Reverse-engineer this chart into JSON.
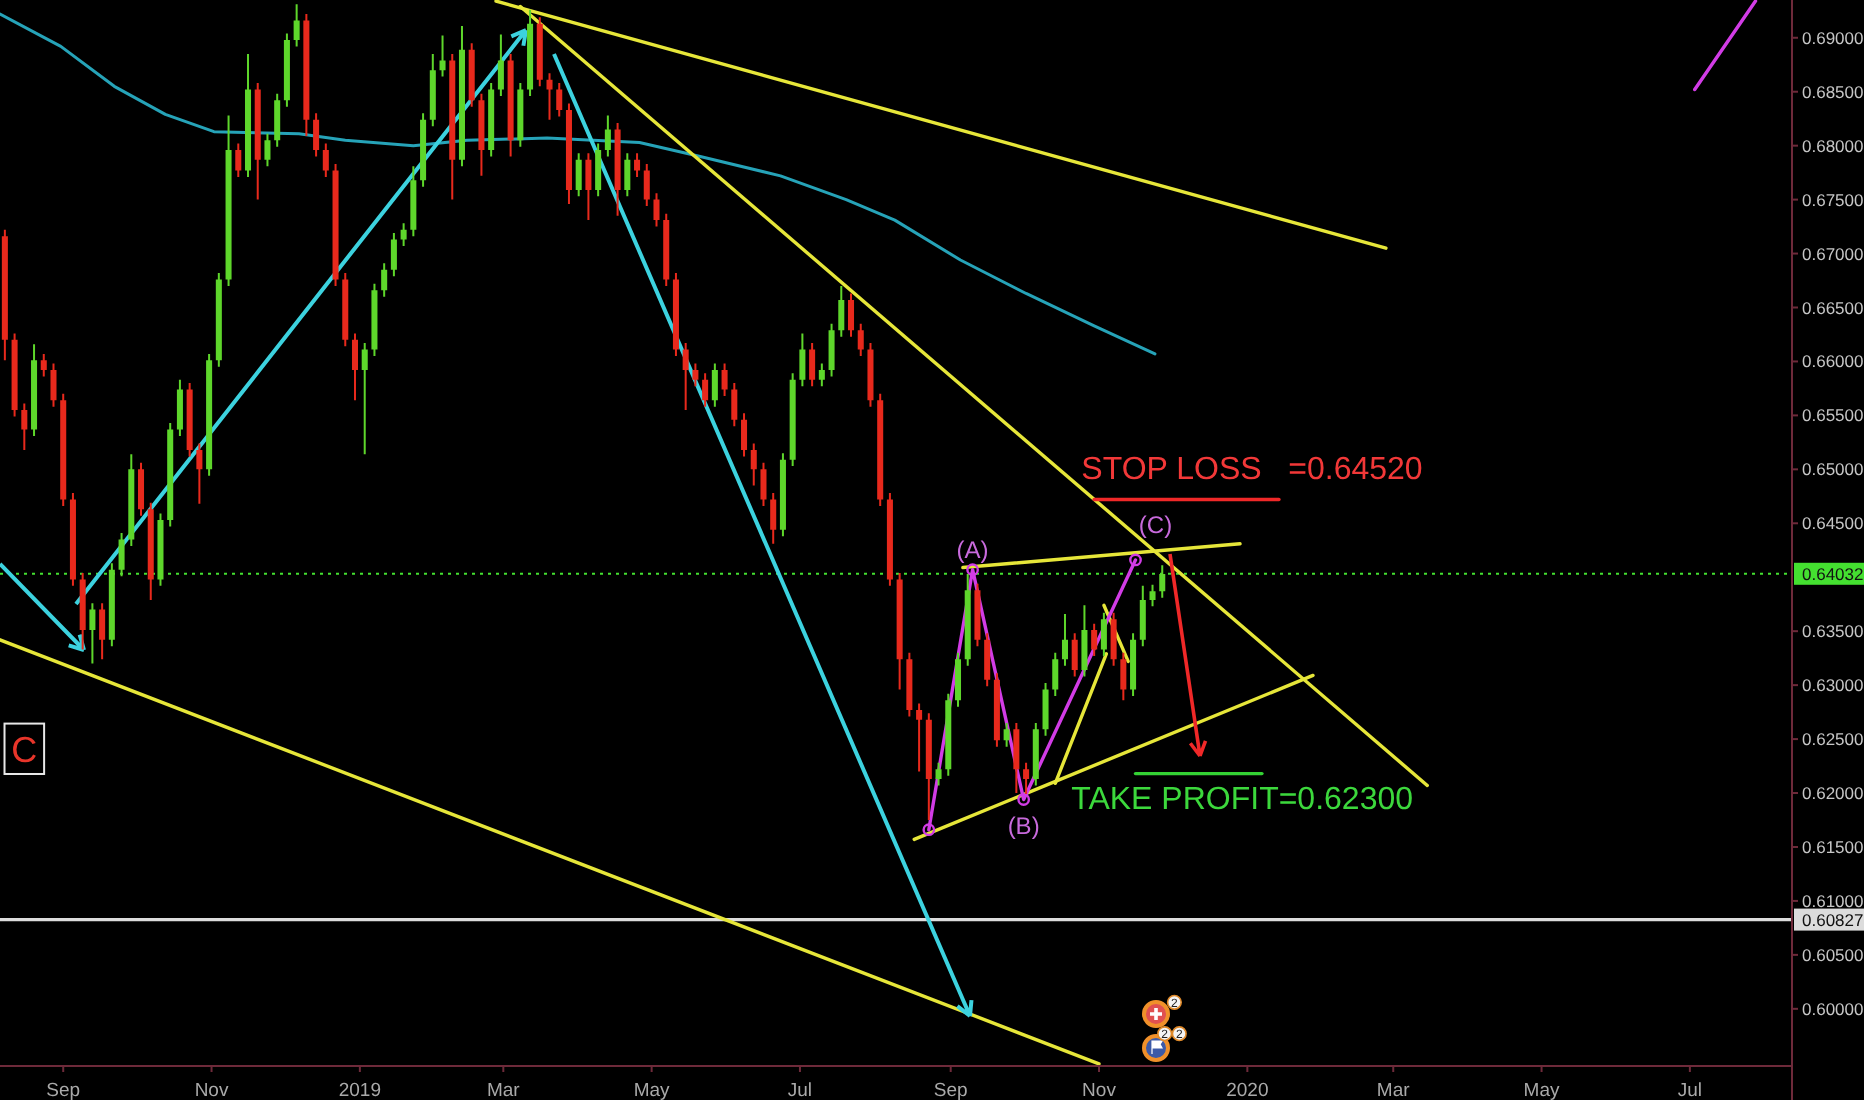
{
  "chart_data": {
    "type": "candlestick",
    "x": [
      "2018-08-08",
      "2018-08-12",
      "2018-08-16",
      "2018-08-20",
      "2018-08-24",
      "2018-08-28",
      "2018-09-01",
      "2018-09-05",
      "2018-09-09",
      "2018-09-13",
      "2018-09-17",
      "2018-09-21",
      "2018-09-25",
      "2018-09-29",
      "2018-10-03",
      "2018-10-07",
      "2018-10-11",
      "2018-10-15",
      "2018-10-19",
      "2018-10-23",
      "2018-10-27",
      "2018-10-31",
      "2018-11-04",
      "2018-11-08",
      "2018-11-12",
      "2018-11-16",
      "2018-11-20",
      "2018-11-24",
      "2018-11-28",
      "2018-12-02",
      "2018-12-06",
      "2018-12-10",
      "2018-12-14",
      "2018-12-18",
      "2018-12-22",
      "2018-12-26",
      "2018-12-30",
      "2019-01-03",
      "2019-01-07",
      "2019-01-11",
      "2019-01-15",
      "2019-01-19",
      "2019-01-23",
      "2019-01-27",
      "2019-01-31",
      "2019-02-04",
      "2019-02-08",
      "2019-02-12",
      "2019-02-16",
      "2019-02-20",
      "2019-02-24",
      "2019-02-28",
      "2019-03-04",
      "2019-03-08",
      "2019-03-12",
      "2019-03-16",
      "2019-03-20",
      "2019-03-24",
      "2019-03-28",
      "2019-04-01",
      "2019-04-05",
      "2019-04-09",
      "2019-04-13",
      "2019-04-17",
      "2019-04-21",
      "2019-04-25",
      "2019-04-29",
      "2019-05-03",
      "2019-05-07",
      "2019-05-11",
      "2019-05-15",
      "2019-05-19",
      "2019-05-23",
      "2019-05-27",
      "2019-05-31",
      "2019-06-04",
      "2019-06-08",
      "2019-06-12",
      "2019-06-16",
      "2019-06-20",
      "2019-06-24",
      "2019-06-28",
      "2019-07-02",
      "2019-07-06",
      "2019-07-10",
      "2019-07-14",
      "2019-07-18",
      "2019-07-22",
      "2019-07-26",
      "2019-07-30",
      "2019-08-03",
      "2019-08-07",
      "2019-08-11",
      "2019-08-15",
      "2019-08-19",
      "2019-08-23",
      "2019-08-27",
      "2019-08-31",
      "2019-09-04",
      "2019-09-08",
      "2019-09-12",
      "2019-09-16",
      "2019-09-20",
      "2019-09-24",
      "2019-09-28",
      "2019-10-02",
      "2019-10-06",
      "2019-10-10",
      "2019-10-14",
      "2019-10-18",
      "2019-10-22",
      "2019-10-26",
      "2019-10-30",
      "2019-11-03",
      "2019-11-07",
      "2019-11-11",
      "2019-11-15",
      "2019-11-19",
      "2019-11-23",
      "2019-11-27"
    ],
    "ohlc": [
      [
        0.6716,
        0.6722,
        0.6601,
        0.662
      ],
      [
        0.662,
        0.6626,
        0.6549,
        0.6555
      ],
      [
        0.6555,
        0.6561,
        0.6518,
        0.6537
      ],
      [
        0.6537,
        0.6616,
        0.6531,
        0.6601
      ],
      [
        0.6601,
        0.6607,
        0.6586,
        0.6592
      ],
      [
        0.6592,
        0.6598,
        0.6558,
        0.6564
      ],
      [
        0.6564,
        0.657,
        0.6466,
        0.6472
      ],
      [
        0.6472,
        0.6478,
        0.6392,
        0.6398
      ],
      [
        0.6398,
        0.6404,
        0.6333,
        0.6351
      ],
      [
        0.6351,
        0.6376,
        0.632,
        0.637
      ],
      [
        0.637,
        0.6376,
        0.6324,
        0.6342
      ],
      [
        0.6342,
        0.6413,
        0.6336,
        0.6407
      ],
      [
        0.6407,
        0.6441,
        0.6401,
        0.6435
      ],
      [
        0.6435,
        0.6514,
        0.6429,
        0.65
      ],
      [
        0.65,
        0.6506,
        0.6457,
        0.6463
      ],
      [
        0.6463,
        0.6469,
        0.6379,
        0.6398
      ],
      [
        0.6398,
        0.6459,
        0.6392,
        0.6453
      ],
      [
        0.6453,
        0.6543,
        0.6447,
        0.6537
      ],
      [
        0.6537,
        0.6583,
        0.6531,
        0.6574
      ],
      [
        0.6574,
        0.658,
        0.6512,
        0.6518
      ],
      [
        0.6518,
        0.6524,
        0.6468,
        0.65
      ],
      [
        0.65,
        0.6607,
        0.6494,
        0.6601
      ],
      [
        0.6601,
        0.6682,
        0.6595,
        0.6676
      ],
      [
        0.6676,
        0.6828,
        0.667,
        0.6796
      ],
      [
        0.6796,
        0.6802,
        0.6771,
        0.6777
      ],
      [
        0.6777,
        0.6885,
        0.6771,
        0.6852
      ],
      [
        0.6852,
        0.6858,
        0.675,
        0.6787
      ],
      [
        0.6787,
        0.6811,
        0.6781,
        0.6805
      ],
      [
        0.6805,
        0.6848,
        0.6799,
        0.6842
      ],
      [
        0.6842,
        0.6904,
        0.6836,
        0.6898
      ],
      [
        0.6898,
        0.6931,
        0.6892,
        0.6916
      ],
      [
        0.6916,
        0.6922,
        0.6809,
        0.6824
      ],
      [
        0.6824,
        0.683,
        0.679,
        0.6796
      ],
      [
        0.6796,
        0.6802,
        0.6771,
        0.6777
      ],
      [
        0.6777,
        0.6783,
        0.667,
        0.6676
      ],
      [
        0.6676,
        0.6682,
        0.6614,
        0.662
      ],
      [
        0.662,
        0.6626,
        0.6564,
        0.6592
      ],
      [
        0.6592,
        0.6617,
        0.6514,
        0.6611
      ],
      [
        0.6611,
        0.6672,
        0.6605,
        0.6666
      ],
      [
        0.6666,
        0.6691,
        0.666,
        0.6685
      ],
      [
        0.6685,
        0.6719,
        0.6679,
        0.6713
      ],
      [
        0.6713,
        0.6728,
        0.6707,
        0.6722
      ],
      [
        0.6722,
        0.6781,
        0.6716,
        0.6768
      ],
      [
        0.6768,
        0.683,
        0.6762,
        0.6824
      ],
      [
        0.6824,
        0.6885,
        0.6818,
        0.687
      ],
      [
        0.687,
        0.6902,
        0.6864,
        0.6879
      ],
      [
        0.6879,
        0.6885,
        0.675,
        0.6787
      ],
      [
        0.6787,
        0.6911,
        0.6781,
        0.6889
      ],
      [
        0.6889,
        0.6895,
        0.6836,
        0.6842
      ],
      [
        0.6842,
        0.6848,
        0.6772,
        0.6796
      ],
      [
        0.6796,
        0.6858,
        0.679,
        0.6852
      ],
      [
        0.6852,
        0.6903,
        0.6846,
        0.6879
      ],
      [
        0.6879,
        0.6885,
        0.679,
        0.6805
      ],
      [
        0.6805,
        0.6858,
        0.6799,
        0.6852
      ],
      [
        0.6852,
        0.6926,
        0.6846,
        0.6913
      ],
      [
        0.6913,
        0.6919,
        0.6855,
        0.6861
      ],
      [
        0.6861,
        0.6867,
        0.6824,
        0.6852
      ],
      [
        0.6852,
        0.6858,
        0.6827,
        0.6833
      ],
      [
        0.6833,
        0.6839,
        0.6746,
        0.6759
      ],
      [
        0.6759,
        0.6793,
        0.6753,
        0.6787
      ],
      [
        0.6787,
        0.6793,
        0.6731,
        0.6759
      ],
      [
        0.6759,
        0.6802,
        0.6753,
        0.6796
      ],
      [
        0.6796,
        0.6828,
        0.679,
        0.6815
      ],
      [
        0.6815,
        0.6821,
        0.6735,
        0.6759
      ],
      [
        0.6759,
        0.6793,
        0.6753,
        0.6787
      ],
      [
        0.6787,
        0.6793,
        0.6771,
        0.6777
      ],
      [
        0.6777,
        0.6783,
        0.6744,
        0.675
      ],
      [
        0.675,
        0.6756,
        0.6725,
        0.6731
      ],
      [
        0.6731,
        0.6737,
        0.667,
        0.6676
      ],
      [
        0.6676,
        0.6682,
        0.6605,
        0.6611
      ],
      [
        0.6611,
        0.6617,
        0.6555,
        0.6592
      ],
      [
        0.6592,
        0.6598,
        0.6577,
        0.6583
      ],
      [
        0.6583,
        0.6589,
        0.6558,
        0.6564
      ],
      [
        0.6564,
        0.6598,
        0.6558,
        0.6592
      ],
      [
        0.6592,
        0.6598,
        0.6568,
        0.6574
      ],
      [
        0.6574,
        0.658,
        0.654,
        0.6546
      ],
      [
        0.6546,
        0.6552,
        0.6512,
        0.6518
      ],
      [
        0.6518,
        0.6524,
        0.6485,
        0.65
      ],
      [
        0.65,
        0.6506,
        0.6466,
        0.6472
      ],
      [
        0.6472,
        0.6478,
        0.6431,
        0.6444
      ],
      [
        0.6444,
        0.6515,
        0.6438,
        0.6509
      ],
      [
        0.6509,
        0.6589,
        0.6503,
        0.6583
      ],
      [
        0.6583,
        0.6626,
        0.6577,
        0.6611
      ],
      [
        0.6611,
        0.6617,
        0.6577,
        0.6583
      ],
      [
        0.6583,
        0.6598,
        0.6577,
        0.6592
      ],
      [
        0.6592,
        0.6635,
        0.6586,
        0.6629
      ],
      [
        0.6629,
        0.667,
        0.6623,
        0.6657
      ],
      [
        0.6657,
        0.6663,
        0.6623,
        0.6629
      ],
      [
        0.6629,
        0.6635,
        0.6605,
        0.6611
      ],
      [
        0.6611,
        0.6617,
        0.6558,
        0.6564
      ],
      [
        0.6564,
        0.657,
        0.6466,
        0.6472
      ],
      [
        0.6472,
        0.6478,
        0.6392,
        0.6398
      ],
      [
        0.6398,
        0.6404,
        0.6296,
        0.6324
      ],
      [
        0.6324,
        0.633,
        0.6271,
        0.6277
      ],
      [
        0.6277,
        0.6283,
        0.622,
        0.6268
      ],
      [
        0.6268,
        0.6274,
        0.6175,
        0.6213
      ],
      [
        0.6213,
        0.6228,
        0.6207,
        0.6222
      ],
      [
        0.6222,
        0.6292,
        0.6216,
        0.6286
      ],
      [
        0.6286,
        0.633,
        0.628,
        0.6324
      ],
      [
        0.6324,
        0.6403,
        0.6318,
        0.6388
      ],
      [
        0.6388,
        0.6394,
        0.6336,
        0.6342
      ],
      [
        0.6342,
        0.6348,
        0.6299,
        0.6305
      ],
      [
        0.6305,
        0.6311,
        0.6243,
        0.6249
      ],
      [
        0.6249,
        0.6265,
        0.6243,
        0.6259
      ],
      [
        0.6259,
        0.6265,
        0.62,
        0.6222
      ],
      [
        0.6222,
        0.6228,
        0.6199,
        0.6213
      ],
      [
        0.6213,
        0.6265,
        0.6207,
        0.6259
      ],
      [
        0.6259,
        0.6302,
        0.6253,
        0.6296
      ],
      [
        0.6296,
        0.633,
        0.629,
        0.6324
      ],
      [
        0.6324,
        0.6366,
        0.6318,
        0.6342
      ],
      [
        0.6342,
        0.6348,
        0.6308,
        0.6314
      ],
      [
        0.6314,
        0.6374,
        0.6308,
        0.6351
      ],
      [
        0.6351,
        0.6357,
        0.6327,
        0.6333
      ],
      [
        0.6333,
        0.6367,
        0.6327,
        0.6361
      ],
      [
        0.6361,
        0.6367,
        0.6318,
        0.6324
      ],
      [
        0.6324,
        0.633,
        0.6286,
        0.6296
      ],
      [
        0.6296,
        0.6348,
        0.629,
        0.6342
      ],
      [
        0.6342,
        0.6392,
        0.6336,
        0.6379
      ],
      [
        0.6379,
        0.6393,
        0.6373,
        0.6387
      ],
      [
        0.6387,
        0.6411,
        0.6381,
        0.6403
      ]
    ],
    "colors": [
      "#e8291c",
      "#e8291c",
      "#e8291c",
      "#5ed62b",
      "#e8291c",
      "#e8291c",
      "#e8291c",
      "#e8291c",
      "#e8291c",
      "#5ed62b",
      "#e8291c",
      "#5ed62b",
      "#5ed62b",
      "#5ed62b",
      "#e8291c",
      "#e8291c",
      "#5ed62b",
      "#5ed62b",
      "#5ed62b",
      "#e8291c",
      "#e8291c",
      "#5ed62b",
      "#5ed62b",
      "#5ed62b",
      "#e8291c",
      "#5ed62b",
      "#e8291c",
      "#5ed62b",
      "#5ed62b",
      "#5ed62b",
      "#5ed62b",
      "#e8291c",
      "#e8291c",
      "#e8291c",
      "#e8291c",
      "#e8291c",
      "#e8291c",
      "#5ed62b",
      "#5ed62b",
      "#5ed62b",
      "#5ed62b",
      "#5ed62b",
      "#5ed62b",
      "#5ed62b",
      "#5ed62b",
      "#5ed62b",
      "#e8291c",
      "#5ed62b",
      "#e8291c",
      "#e8291c",
      "#5ed62b",
      "#5ed62b",
      "#e8291c",
      "#5ed62b",
      "#5ed62b",
      "#e8291c",
      "#e8291c",
      "#e8291c",
      "#e8291c",
      "#5ed62b",
      "#e8291c",
      "#5ed62b",
      "#5ed62b",
      "#e8291c",
      "#5ed62b",
      "#e8291c",
      "#e8291c",
      "#e8291c",
      "#e8291c",
      "#e8291c",
      "#e8291c",
      "#e8291c",
      "#e8291c",
      "#5ed62b",
      "#e8291c",
      "#e8291c",
      "#e8291c",
      "#e8291c",
      "#e8291c",
      "#e8291c",
      "#5ed62b",
      "#5ed62b",
      "#5ed62b",
      "#e8291c",
      "#5ed62b",
      "#5ed62b",
      "#5ed62b",
      "#e8291c",
      "#e8291c",
      "#e8291c",
      "#e8291c",
      "#e8291c",
      "#e8291c",
      "#e8291c",
      "#e8291c",
      "#e8291c",
      "#5ed62b",
      "#5ed62b",
      "#5ed62b",
      "#5ed62b",
      "#e8291c",
      "#e8291c",
      "#e8291c",
      "#5ed62b",
      "#e8291c",
      "#e8291c",
      "#5ed62b",
      "#5ed62b",
      "#5ed62b",
      "#5ed62b",
      "#e8291c",
      "#5ed62b",
      "#e8291c",
      "#5ed62b",
      "#e8291c",
      "#e8291c",
      "#5ed62b",
      "#5ed62b",
      "#5ed62b",
      "#5ed62b"
    ],
    "series": [
      {
        "type": "line",
        "color": "#26a3b8",
        "x": [
          "2018-08-06",
          "2018-08-31",
          "2018-09-22",
          "2018-10-13",
          "2018-11-02",
          "2018-12-07",
          "2018-12-26",
          "2019-01-23",
          "2019-02-14",
          "2019-03-19",
          "2019-04-26",
          "2019-05-21",
          "2019-06-23",
          "2019-07-20",
          "2019-08-09",
          "2019-09-05",
          "2019-10-02",
          "2019-10-30",
          "2019-11-24"
        ],
        "values": [
          0.6922,
          0.6892,
          0.6855,
          0.6829,
          0.6813,
          0.6811,
          0.6805,
          0.68,
          0.6805,
          0.6807,
          0.6803,
          0.679,
          0.6772,
          0.675,
          0.6731,
          0.6694,
          0.6663,
          0.6633,
          0.6607
        ]
      },
      {
        "type": "line",
        "color": "#e6e639",
        "x": [
          "2019-02-26",
          "2020-02-27"
        ],
        "values": [
          0.6934,
          0.6705
        ]
      },
      {
        "type": "line",
        "color": "#e6e639",
        "x": [
          "2019-03-08",
          "2020-03-15"
        ],
        "values": [
          0.6929,
          0.6207
        ]
      },
      {
        "type": "line",
        "color": "#e6e639",
        "x": [
          "2018-08-06",
          "2019-11-01"
        ],
        "values": [
          0.6342,
          0.5949
        ]
      },
      {
        "type": "line",
        "color": "#e6e639",
        "x": [
          "2019-08-17",
          "2020-01-28"
        ],
        "values": [
          0.6157,
          0.6309
        ]
      },
      {
        "type": "line",
        "color": "#e6e639",
        "x": [
          "2019-09-06",
          "2019-12-29"
        ],
        "values": [
          0.6409,
          0.6431
        ]
      },
      {
        "type": "line",
        "color": "#e6e639",
        "x": [
          "2019-10-14",
          "2019-11-04"
        ],
        "values": [
          0.6209,
          0.6329
        ]
      },
      {
        "type": "line",
        "color": "#e6e639",
        "x": [
          "2019-11-03",
          "2019-11-13"
        ],
        "values": [
          0.6374,
          0.6322
        ]
      },
      {
        "type": "line",
        "color": "#d23ce6",
        "marker": "circle",
        "x": [
          "2019-08-23",
          "2019-09-10",
          "2019-10-01",
          "2019-11-16"
        ],
        "values": [
          0.6166,
          0.6407,
          0.6194,
          0.6416
        ]
      },
      {
        "type": "line",
        "color": "#d23ce6",
        "x": [
          "2020-07-03",
          "2020-07-28"
        ],
        "values": [
          0.6852,
          0.6934
        ]
      },
      {
        "type": "line",
        "color": "#f02828",
        "x": [
          "2019-10-30",
          "2020-01-14"
        ],
        "values": [
          0.6472,
          0.6472
        ]
      },
      {
        "type": "line",
        "color": "#34d234",
        "x": [
          "2019-11-16",
          "2020-01-07"
        ],
        "values": [
          0.6218,
          0.6218
        ]
      }
    ],
    "xlim": [
      "2018-08-06",
      "2020-08-12"
    ],
    "xticks": [
      {
        "value": "2018-09",
        "label": "Sep"
      },
      {
        "value": "2018-11",
        "label": "Nov"
      },
      {
        "value": "2019",
        "label": "2019"
      },
      {
        "value": "2019-03",
        "label": "Mar"
      },
      {
        "value": "2019-05",
        "label": "May"
      },
      {
        "value": "2019-07",
        "label": "Jul"
      },
      {
        "value": "2019-09",
        "label": "Sep"
      },
      {
        "value": "2019-11",
        "label": "Nov"
      },
      {
        "value": "2020",
        "label": "2020"
      },
      {
        "value": "2020-03",
        "label": "Mar"
      },
      {
        "value": "2020-05",
        "label": "May"
      },
      {
        "value": "2020-07",
        "label": "Jul"
      }
    ],
    "ylim": [
      0.5947,
      0.6935
    ],
    "yticks": [
      {
        "value": 0.6,
        "label": "0.60000"
      },
      {
        "value": 0.605,
        "label": "0.60500"
      },
      {
        "value": 0.61,
        "label": "0.61000"
      },
      {
        "value": 0.615,
        "label": "0.61500"
      },
      {
        "value": 0.62,
        "label": "0.62000"
      },
      {
        "value": 0.625,
        "label": "0.62500"
      },
      {
        "value": 0.63,
        "label": "0.63000"
      },
      {
        "value": 0.635,
        "label": "0.63500"
      },
      {
        "value": 0.645,
        "label": "0.64500"
      },
      {
        "value": 0.65,
        "label": "0.65000"
      },
      {
        "value": 0.655,
        "label": "0.65500"
      },
      {
        "value": 0.66,
        "label": "0.66000"
      },
      {
        "value": 0.665,
        "label": "0.66500"
      },
      {
        "value": 0.67,
        "label": "0.67000"
      },
      {
        "value": 0.675,
        "label": "0.67500"
      },
      {
        "value": 0.68,
        "label": "0.68000"
      },
      {
        "value": 0.685,
        "label": "0.68500"
      },
      {
        "value": 0.69,
        "label": "0.69000"
      }
    ],
    "ref_lines": [
      {
        "axis": "y",
        "value": 0.64032,
        "label": "0.64032",
        "color": "#44e030",
        "line_style": "dotted"
      },
      {
        "axis": "y",
        "value": 0.60827,
        "label": "0.60827",
        "color": "#dcdcdc"
      }
    ],
    "annotations": [
      "STOP LOSS   =0.64520",
      {
        "text": "TAKE PROFIT=0.62300",
        "x": "2019-12-13",
        "y": 0.6218
      },
      {
        "text": "(A)",
        "x": "2019-09-10",
        "y": 0.6407
      },
      {
        "text": "(B)",
        "x": "2019-10-01",
        "y": 0.6194
      },
      {
        "text": "(C)",
        "x": "2019-11-16",
        "y": 0.6416
      },
      {
        "text": "C",
        "x": "2018-08-16",
        "y": 0.6241
      },
      {
        "text": "2",
        "x": "2019-12-02",
        "y": 0.6006
      },
      {
        "text": "2",
        "x": "2019-11-28",
        "y": 0.5977
      },
      {
        "text": "2",
        "x": "2019-12-04",
        "y": 0.5977
      }
    ]
  }
}
